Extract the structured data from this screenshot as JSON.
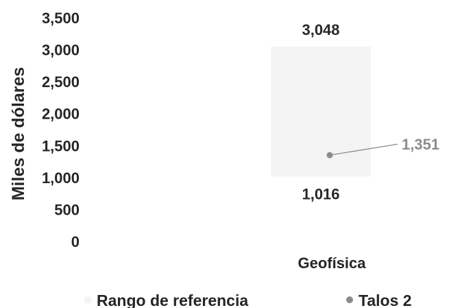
{
  "chart_data": {
    "type": "range-bar",
    "title": "",
    "ylabel": "Miles de dólares",
    "xlabel": "",
    "ylim": [
      0,
      3500
    ],
    "yticks": [
      0,
      500,
      1000,
      1500,
      2000,
      2500,
      3000,
      3500
    ],
    "ytick_labels": [
      "0",
      "500",
      "1,000",
      "1,500",
      "2,000",
      "2,500",
      "3,000",
      "3,500"
    ],
    "categories": [
      "Geofísica"
    ],
    "ranges": [
      {
        "category": "Geofísica",
        "low": 1016,
        "high": 3048,
        "low_label": "1,016",
        "high_label": "3,048"
      }
    ],
    "points": [
      {
        "category": "Geofísica",
        "value": 1351,
        "label": "1,351"
      }
    ],
    "legend": [
      {
        "name": "Rango de referencia",
        "marker": "square",
        "color": "#f4f4f4"
      },
      {
        "name": "Talos 2",
        "marker": "circle",
        "color": "#8c8c8c"
      }
    ],
    "legend_position": "bottom",
    "grid": false,
    "colors": {
      "range_fill": "#f4f4f4",
      "point": "#8c8c8c",
      "point_label": "#8c8c8c",
      "text": "#262626"
    }
  }
}
